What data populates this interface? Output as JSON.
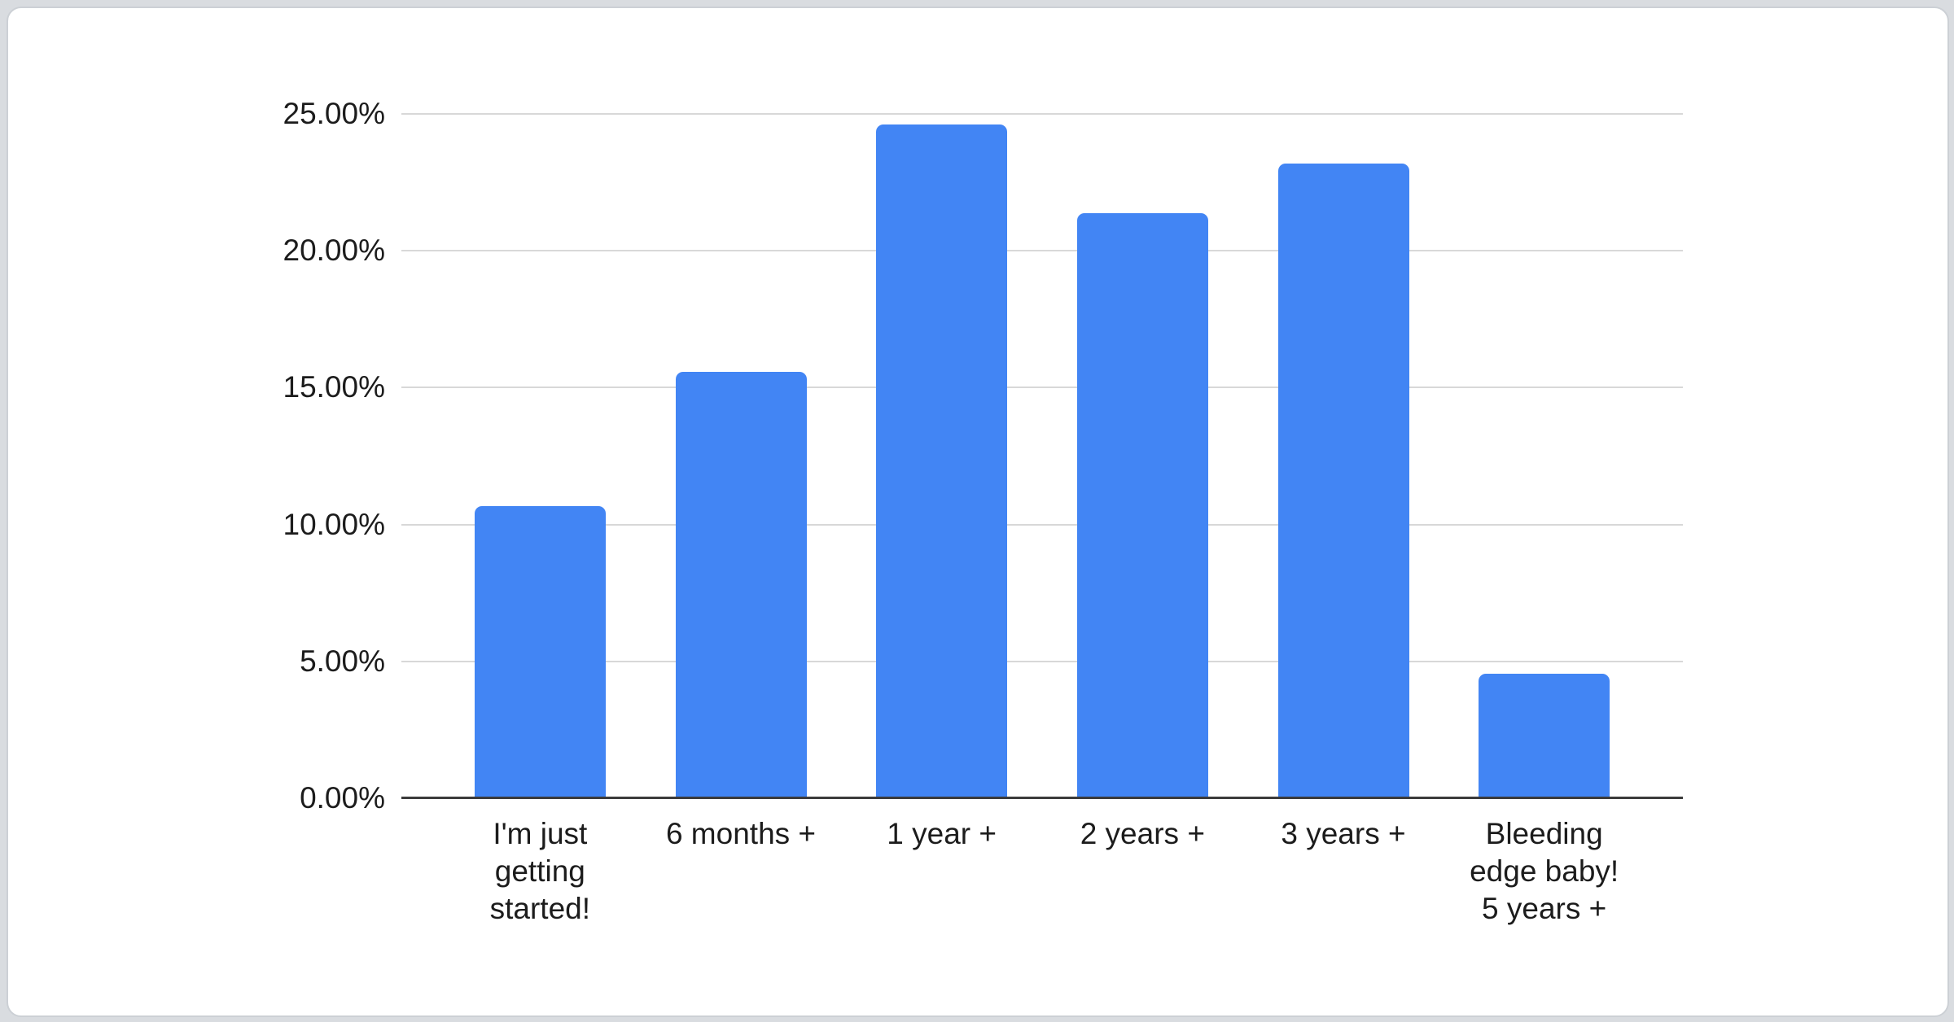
{
  "chart_data": {
    "type": "bar",
    "title": "",
    "xlabel": "",
    "ylabel": "",
    "categories": [
      "I'm just getting started!",
      "6 months +",
      "1 year +",
      "2 years +",
      "3 years +",
      "Bleeding edge baby! 5 years +"
    ],
    "category_lines": [
      [
        "I'm just",
        "getting",
        "started!"
      ],
      [
        "6 months +"
      ],
      [
        "1 year +"
      ],
      [
        "2 years +"
      ],
      [
        "3 years +"
      ],
      [
        "Bleeding",
        "edge baby!",
        "5 years +"
      ]
    ],
    "values": [
      10.67,
      15.58,
      24.62,
      21.38,
      23.2,
      4.54
    ],
    "value_unit": "%",
    "ylim": [
      0,
      25
    ],
    "yticks": [
      {
        "value": 0,
        "label": "0.00%"
      },
      {
        "value": 5,
        "label": "5.00%"
      },
      {
        "value": 10,
        "label": "10.00%"
      },
      {
        "value": 15,
        "label": "15.00%"
      },
      {
        "value": 20,
        "label": "20.00%"
      },
      {
        "value": 25,
        "label": "25.00%"
      }
    ],
    "grid": true,
    "legend": "none",
    "colors": {
      "bar": "#4285f4",
      "gridline": "#d8d8d8",
      "axis_line": "#3b3b3b",
      "tick_text": "#1c1c1c",
      "card_background": "#ffffff",
      "page_background": "#d9dce0",
      "card_border": "#ccd0d5"
    }
  }
}
